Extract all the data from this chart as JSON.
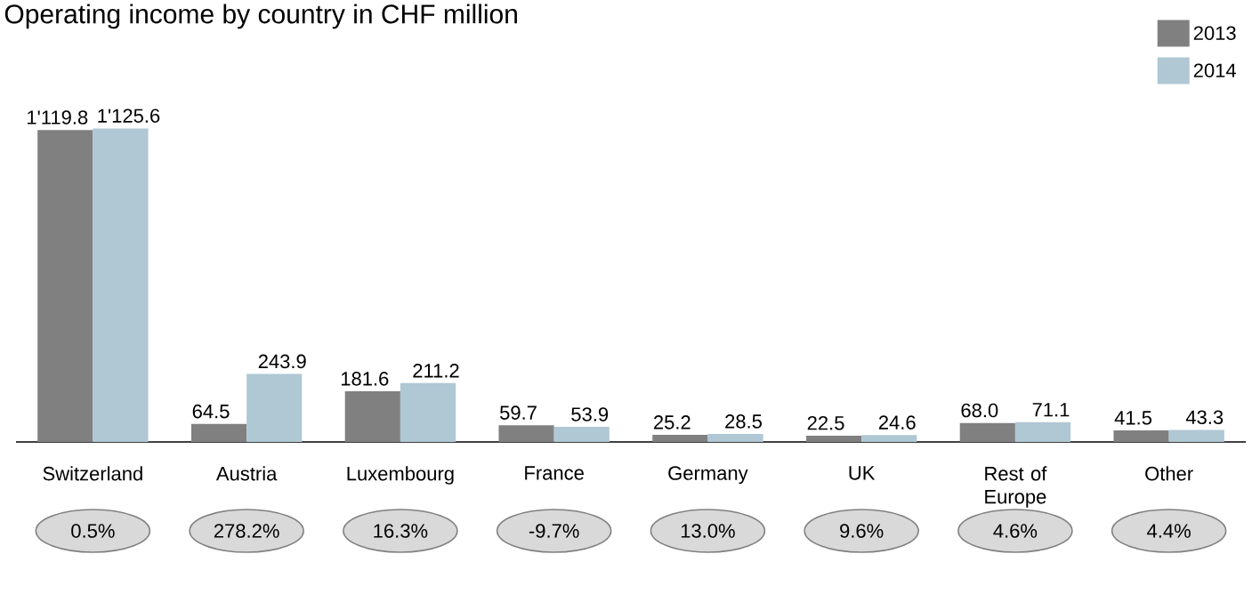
{
  "chart_data": {
    "type": "bar",
    "title": "Operating income by country in CHF million",
    "categories": [
      "Switzerland",
      "Austria",
      "Luxembourg",
      "France",
      "Germany",
      "UK",
      "Rest of Europe",
      "Other"
    ],
    "series": [
      {
        "name": "2013",
        "color": "#808080",
        "values": [
          1119.8,
          64.5,
          181.6,
          59.7,
          25.2,
          22.5,
          68.0,
          41.5
        ],
        "value_labels": [
          "1'119.8",
          "64.5",
          "181.6",
          "59.7",
          "25.2",
          "22.5",
          "68.0",
          "41.5"
        ]
      },
      {
        "name": "2014",
        "color": "#b0c7d4",
        "values": [
          1125.6,
          243.9,
          211.2,
          53.9,
          28.5,
          24.6,
          71.1,
          43.3
        ],
        "value_labels": [
          "1'125.6",
          "243.9",
          "211.2",
          "53.9",
          "28.5",
          "24.6",
          "71.1",
          "43.3"
        ]
      }
    ],
    "ylim": [
      0,
      1130
    ],
    "tick_labels": "x",
    "legend": "top right",
    "annotations": [
      "0.5%",
      "278.2%",
      "16.3%",
      "-9.7%",
      "13.0%",
      "9.6%",
      "4.6%",
      "4.4%"
    ]
  }
}
